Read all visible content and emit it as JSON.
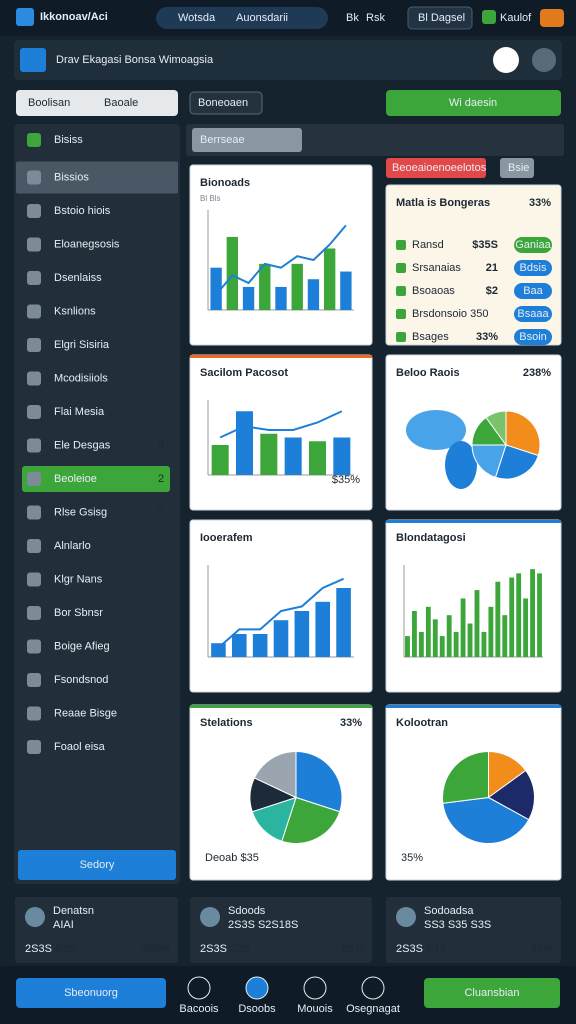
{
  "top_bar": {
    "logo": "Ikkonoav/Aci",
    "search": "Wotsda",
    "search_hint": "Auonsdarii",
    "links": [
      "Bk",
      "Rsk"
    ],
    "dropdown": "Bl Dagsel",
    "user": "Kaulof"
  },
  "header": {
    "title": "Drav Ekagasi Bonsa Wimoagsia"
  },
  "toolbar": {
    "input": "Boolisan",
    "input_tag": "Baoale",
    "dropdown": "Boneoaen",
    "button": "Wi daesin",
    "search": "Berrseae",
    "filter": "Beoeaioenoeelotos",
    "filter2": "Bsie"
  },
  "sidebar": {
    "items": [
      {
        "label": "Bisiss"
      },
      {
        "label": "Bissios"
      },
      {
        "label": "Bstoio hiois"
      },
      {
        "label": "Eloanegsosis"
      },
      {
        "label": "Dsenlaiss"
      },
      {
        "label": "Ksnlions"
      },
      {
        "label": "Elgri Sisiria"
      },
      {
        "label": "Mcodisiiols"
      },
      {
        "label": "Flai Mesia"
      },
      {
        "label": "Ele Desgas",
        "badge": 9
      },
      {
        "label": "Beoleioe",
        "badge": 2
      },
      {
        "label": "Rlse Gsisg",
        "badge": 0
      },
      {
        "label": "Alnlarlo"
      },
      {
        "label": "Klgr Nans"
      },
      {
        "label": "Bor Sbnsr"
      },
      {
        "label": "Boige Afieg"
      },
      {
        "label": "Fsondsnod"
      },
      {
        "label": "Reaae Bisge"
      },
      {
        "label": "Foaol eisa"
      }
    ],
    "button": "Sedory"
  },
  "cards": [
    {
      "kind": "bar",
      "title": "Bionoads",
      "subtitle": "Bl Bls",
      "ylim": [
        0,
        130
      ],
      "bars": [
        55,
        95,
        30,
        60,
        30,
        60,
        40,
        80,
        50
      ],
      "line": [
        20,
        45,
        35,
        60,
        55,
        70,
        65,
        85,
        110
      ],
      "colors": [
        "#1e7fd8",
        "#3da63a"
      ]
    },
    {
      "kind": "table",
      "title": "Matla is Bongeras",
      "value": "33%",
      "rows": [
        {
          "label": "Ransd",
          "value": "$35S",
          "pill": "Ganiaa"
        },
        {
          "label": "Srsanaias",
          "value": "21",
          "pill": "Bdsis"
        },
        {
          "label": "Bsoaoas",
          "value": "$2",
          "pill": "Baa"
        },
        {
          "label": "Brsdonsoio 350",
          "pill": "Bsaaa"
        },
        {
          "label": "Bsages",
          "value": "33%",
          "pill": "Bsoin"
        }
      ]
    },
    {
      "kind": "bar",
      "title": "Sacilom Pacosot",
      "note": "$35%",
      "accent": "#f06a1d",
      "ylim": [
        0,
        100
      ],
      "bars": [
        40,
        85,
        55,
        50,
        45,
        50
      ],
      "line": [
        50,
        65,
        60,
        60,
        70,
        85
      ],
      "colors": [
        "#3da63a",
        "#1e7fd8"
      ]
    },
    {
      "kind": "map",
      "title": "Beloo Raois",
      "value": "238%",
      "pie": [
        30,
        25,
        20,
        15,
        10
      ],
      "pie_colors": [
        "#f28c1a",
        "#1e7fd8",
        "#49a3e8",
        "#3da63a",
        "#7bc36a"
      ]
    },
    {
      "kind": "bar",
      "title": "Iooerafem",
      "ylim": [
        0,
        100
      ],
      "bars": [
        15,
        25,
        25,
        40,
        50,
        60,
        75
      ],
      "line": [
        10,
        30,
        30,
        50,
        55,
        75,
        85
      ],
      "colors": [
        "#1e7fd8"
      ]
    },
    {
      "kind": "bar",
      "title": "Blondatagosi",
      "accent": "#1e7fd8",
      "ylim": [
        0,
        110
      ],
      "bars": [
        25,
        55,
        30,
        60,
        45,
        25,
        50,
        30,
        70,
        40,
        80,
        30,
        60,
        90,
        50,
        95,
        100,
        70,
        105,
        100
      ],
      "colors": [
        "#3da63a"
      ]
    },
    {
      "kind": "pie",
      "title": "Stelations",
      "value": "33%",
      "note": "Deoab $35",
      "accent": "#3da63a",
      "pie": [
        30,
        25,
        15,
        12,
        18
      ],
      "pie_colors": [
        "#1e7fd8",
        "#3da63a",
        "#2bb5a0",
        "#1c2a3a",
        "#9aa5b0"
      ]
    },
    {
      "kind": "pie",
      "title": "Kolootran",
      "note": "35%",
      "accent": "#1e7fd8",
      "pie": [
        15,
        18,
        40,
        27
      ],
      "pie_colors": [
        "#f28c1a",
        "#1c2a6a",
        "#1e7fd8",
        "#3da63a"
      ]
    }
  ],
  "stats": [
    {
      "name": "Denatsn",
      "sub": "AIAI",
      "left": "2S3S",
      "mid": "S3S",
      "right": "335%"
    },
    {
      "name": "Sdoods",
      "sub": "2S3S S2S18S",
      "left": "2S3S",
      "mid": "S35",
      "right": "8S%"
    },
    {
      "name": "Sodoadsa",
      "sub": "SS3 S35 S3S",
      "left": "2S3S",
      "mid": "S3S",
      "right": "83%"
    }
  ],
  "bottom_nav": {
    "primary": "Sbeonuorg",
    "items": [
      "Bacoois",
      "Dsoobs",
      "Mouois",
      "Osegnagat"
    ],
    "action": "Cluansbian"
  }
}
